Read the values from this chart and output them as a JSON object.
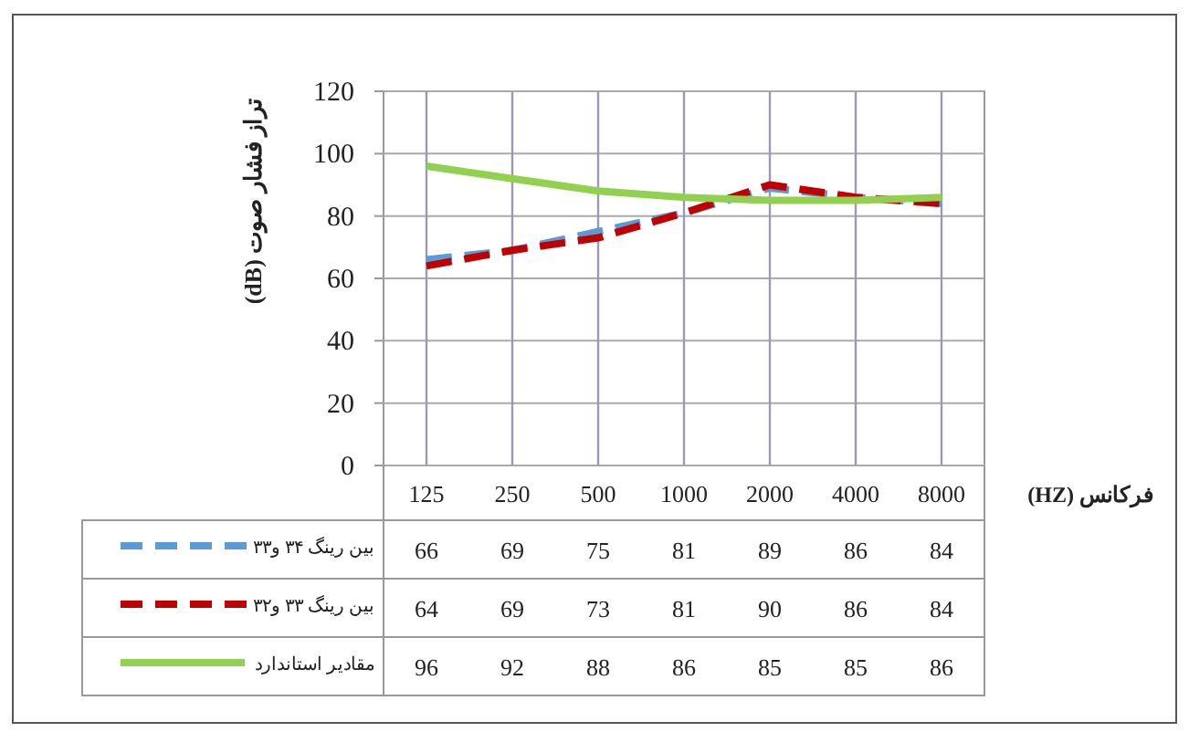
{
  "chart_data": {
    "type": "line",
    "ylabel": "تراز فشار صوت (dB)",
    "xlabel": "فرکانس  (HZ)",
    "categories": [
      "125",
      "250",
      "500",
      "1000",
      "2000",
      "4000",
      "8000"
    ],
    "ylim": [
      0,
      120
    ],
    "yticks": [
      0,
      20,
      40,
      60,
      80,
      100,
      120
    ],
    "grid": true,
    "legend": "bottom",
    "data_labels": true,
    "series": [
      {
        "name": "بین رینگ ۳۴ و۳۳",
        "color": "#5b9bd5",
        "line_style": "dashed",
        "values": [
          66,
          69,
          75,
          81,
          89,
          86,
          84
        ]
      },
      {
        "name": "بین رینگ ۳۳ و۳۲",
        "color": "#c00000",
        "line_style": "dashed",
        "values": [
          64,
          69,
          73,
          81,
          90,
          86,
          84
        ]
      },
      {
        "name": "مقادیر استاندارد",
        "color": "#92d050",
        "line_style": "solid",
        "values": [
          96,
          92,
          88,
          86,
          85,
          85,
          86
        ]
      }
    ]
  }
}
